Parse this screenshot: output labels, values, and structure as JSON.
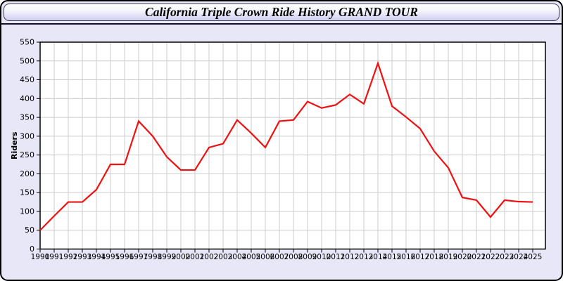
{
  "window": {
    "title": "California Triple Crown Ride History GRAND TOUR"
  },
  "chart_data": {
    "type": "line",
    "title": "California Triple Crown Ride History GRAND TOUR",
    "xlabel": "",
    "ylabel": "Riders",
    "x": [
      1990,
      1991,
      1992,
      1993,
      1994,
      1995,
      1996,
      1997,
      1998,
      1999,
      2000,
      2001,
      2002,
      2003,
      2004,
      2005,
      2006,
      2007,
      2008,
      2009,
      2010,
      2011,
      2012,
      2013,
      2014,
      2015,
      2016,
      2017,
      2018,
      2019,
      2020,
      2021,
      2022,
      2023,
      2024,
      2025
    ],
    "series": [
      {
        "name": "Riders",
        "values": [
          50,
          88,
          125,
          125,
          158,
          225,
          225,
          340,
          300,
          245,
          210,
          210,
          270,
          280,
          343,
          308,
          270,
          340,
          343,
          392,
          375,
          383,
          411,
          386,
          494,
          380,
          351,
          320,
          260,
          216,
          137,
          130,
          85,
          130,
          126,
          125
        ]
      }
    ],
    "ylim": [
      0,
      550
    ],
    "ytick_step": 50,
    "xtick_step": 1,
    "grid": true,
    "legend": "none",
    "colors": {
      "line": "#ee1111",
      "grid": "#cccccc",
      "plot_background": "#ffffff",
      "page_background": "#e7e7f8",
      "plot_border": "#000000"
    }
  }
}
